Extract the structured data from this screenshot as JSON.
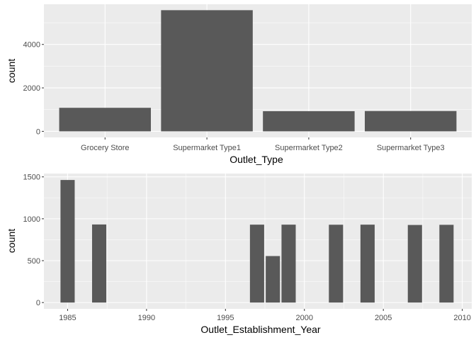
{
  "colors": {
    "panel": "#ebebeb",
    "grid_major": "#ffffff",
    "bar": "#595959",
    "tick_text": "#4d4d4d"
  },
  "chart_data": [
    {
      "type": "bar",
      "categories": [
        "Grocery Store",
        "Supermarket Type1",
        "Supermarket Type2",
        "Supermarket Type3"
      ],
      "values": [
        1083,
        5577,
        928,
        935
      ],
      "xlabel": "Outlet_Type",
      "ylabel": "count",
      "yticks": [
        0,
        2000,
        4000
      ],
      "ytick_labels": [
        "0",
        "2000",
        "4000"
      ],
      "ylim": [
        -280,
        5850
      ],
      "grid": true,
      "legend": "none"
    },
    {
      "type": "bar",
      "x": [
        1985,
        1987,
        1997,
        1998,
        1999,
        2002,
        2004,
        2007,
        2009
      ],
      "values": [
        1463,
        932,
        930,
        555,
        930,
        929,
        930,
        926,
        928
      ],
      "xlabel": "Outlet_Establishment_Year",
      "ylabel": "count",
      "xticks": [
        1985,
        1990,
        1995,
        2000,
        2005,
        2010
      ],
      "xtick_labels": [
        "1985",
        "1990",
        "1995",
        "2000",
        "2005",
        "2010"
      ],
      "yticks": [
        0,
        500,
        1000,
        1500
      ],
      "ytick_labels": [
        "0",
        "500",
        "1000",
        "1500"
      ],
      "xlim": [
        1983.5,
        2010.6
      ],
      "ylim": [
        -75,
        1540
      ],
      "grid": true,
      "legend": "none"
    }
  ]
}
